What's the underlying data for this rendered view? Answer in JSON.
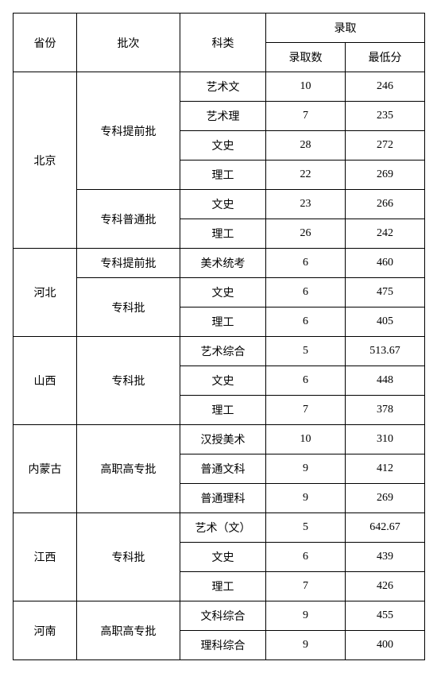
{
  "headers": {
    "province": "省份",
    "batch": "批次",
    "category": "科类",
    "admission": "录取",
    "count": "录取数",
    "min_score": "最低分"
  },
  "rows": [
    {
      "province": "北京",
      "batch": "专科提前批",
      "category": "艺术文",
      "count": "10",
      "score": "246",
      "province_rowspan": 6,
      "batch_rowspan": 4
    },
    {
      "category": "艺术理",
      "count": "7",
      "score": "235"
    },
    {
      "category": "文史",
      "count": "28",
      "score": "272"
    },
    {
      "category": "理工",
      "count": "22",
      "score": "269"
    },
    {
      "batch": "专科普通批",
      "category": "文史",
      "count": "23",
      "score": "266",
      "batch_rowspan": 2
    },
    {
      "category": "理工",
      "count": "26",
      "score": "242"
    },
    {
      "province": "河北",
      "batch": "专科提前批",
      "category": "美术统考",
      "count": "6",
      "score": "460",
      "province_rowspan": 3,
      "batch_rowspan": 1
    },
    {
      "batch": "专科批",
      "category": "文史",
      "count": "6",
      "score": "475",
      "batch_rowspan": 2
    },
    {
      "category": "理工",
      "count": "6",
      "score": "405"
    },
    {
      "province": "山西",
      "batch": "专科批",
      "category": "艺术综合",
      "count": "5",
      "score": "513.67",
      "province_rowspan": 3,
      "batch_rowspan": 3
    },
    {
      "category": "文史",
      "count": "6",
      "score": "448"
    },
    {
      "category": "理工",
      "count": "7",
      "score": "378"
    },
    {
      "province": "内蒙古",
      "batch": "高职高专批",
      "category": "汉授美术",
      "count": "10",
      "score": "310",
      "province_rowspan": 3,
      "batch_rowspan": 3
    },
    {
      "category": "普通文科",
      "count": "9",
      "score": "412"
    },
    {
      "category": "普通理科",
      "count": "9",
      "score": "269"
    },
    {
      "province": "江西",
      "batch": "专科批",
      "category": "艺术（文）",
      "count": "5",
      "score": "642.67",
      "province_rowspan": 3,
      "batch_rowspan": 3
    },
    {
      "category": "文史",
      "count": "6",
      "score": "439"
    },
    {
      "category": "理工",
      "count": "7",
      "score": "426"
    },
    {
      "province": "河南",
      "batch": "高职高专批",
      "category": "文科综合",
      "count": "9",
      "score": "455",
      "province_rowspan": 2,
      "batch_rowspan": 2
    },
    {
      "category": "理科综合",
      "count": "9",
      "score": "400"
    }
  ]
}
